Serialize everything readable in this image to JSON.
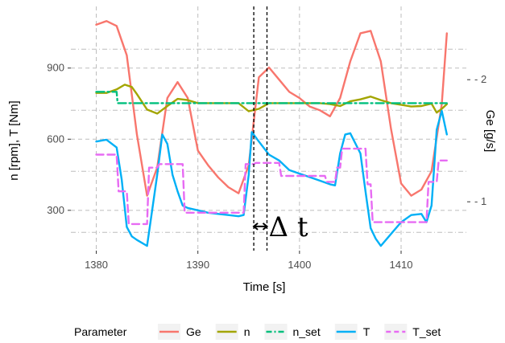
{
  "chart_data": {
    "type": "line",
    "xlabel": "Time [s]",
    "ylabel": "n [rpm], T [Nm]",
    "y2label": "Ge [g/s]",
    "xlim": [
      1377.5,
      1416.5
    ],
    "ylim": [
      130,
      1160
    ],
    "y2lim": [
      0.6,
      2.6
    ],
    "xticks": [
      1380,
      1390,
      1400,
      1410
    ],
    "yticks": [
      300,
      600,
      900
    ],
    "y2ticks": [
      1,
      2
    ],
    "minor_y_gridlines": [
      150,
      450,
      750,
      1050
    ],
    "minor_y2_gridlines": [
      0.75,
      1.25,
      1.75,
      2.25
    ],
    "grid": true,
    "legend": {
      "position": "bottom",
      "title": "Parameter",
      "entries": [
        {
          "name": "Ge",
          "color": "#F8766D",
          "dash": "solid"
        },
        {
          "name": "n",
          "color": "#A3A500",
          "dash": "solid"
        },
        {
          "name": "n_set",
          "color": "#00BF7D",
          "dash": "dashdot"
        },
        {
          "name": "T",
          "color": "#00B0F6",
          "dash": "solid"
        },
        {
          "name": "T_set",
          "color": "#E76BF3",
          "dash": "dashed"
        }
      ]
    },
    "annotation": {
      "text": "Δ t",
      "x_start": 1395.5,
      "x_end": 1396.8,
      "y": 232
    },
    "series": [
      {
        "name": "Ge",
        "axis": "y2",
        "color": "#F8766D",
        "x": [
          1380,
          1381,
          1382,
          1383,
          1384,
          1385,
          1386,
          1387,
          1388,
          1389,
          1390,
          1391,
          1392,
          1393,
          1394,
          1395,
          1396,
          1397,
          1398,
          1399,
          1400,
          1401,
          1402,
          1403,
          1404,
          1405,
          1406,
          1407,
          1408,
          1409,
          1410,
          1411,
          1412,
          1413,
          1414,
          1414.5
        ],
        "y": [
          2.45,
          2.48,
          2.44,
          2.2,
          1.55,
          1.05,
          1.28,
          1.85,
          1.98,
          1.85,
          1.42,
          1.3,
          1.2,
          1.12,
          1.07,
          1.3,
          2.02,
          2.1,
          2.0,
          1.9,
          1.85,
          1.78,
          1.75,
          1.7,
          1.85,
          2.15,
          2.38,
          2.4,
          2.15,
          1.6,
          1.15,
          1.05,
          1.1,
          1.25,
          1.8,
          2.38
        ]
      },
      {
        "name": "n",
        "color": "#A3A500",
        "x": [
          1380,
          1381,
          1382,
          1382.8,
          1383.5,
          1384,
          1385,
          1386,
          1387,
          1388,
          1389,
          1390,
          1391,
          1392,
          1393,
          1394,
          1395,
          1396,
          1397,
          1398,
          1400,
          1402,
          1403,
          1404,
          1405,
          1406,
          1407,
          1408,
          1409,
          1410,
          1411,
          1412,
          1413,
          1413.5,
          1414,
          1414.5
        ],
        "y": [
          795,
          795,
          810,
          830,
          820,
          790,
          725,
          708,
          740,
          770,
          765,
          752,
          752,
          752,
          752,
          752,
          718,
          728,
          752,
          752,
          752,
          752,
          748,
          740,
          760,
          768,
          780,
          765,
          752,
          745,
          738,
          740,
          750,
          712,
          728,
          748
        ]
      },
      {
        "name": "n_set",
        "color": "#00BF7D",
        "x": [
          1380,
          1382,
          1382.1,
          1385,
          1386,
          1390,
          1395,
          1400,
          1405,
          1410,
          1414.5
        ],
        "y": [
          800,
          800,
          752,
          752,
          752,
          752,
          752,
          752,
          752,
          752,
          752
        ]
      },
      {
        "name": "T",
        "color": "#00B0F6",
        "x": [
          1380,
          1381,
          1382,
          1382.5,
          1383,
          1383.5,
          1384,
          1385,
          1386,
          1386.5,
          1387,
          1387.5,
          1388,
          1388.5,
          1389,
          1390,
          1391,
          1392,
          1393,
          1394,
          1394.5,
          1395,
          1395.3,
          1396,
          1397,
          1398,
          1399,
          1400,
          1401,
          1402,
          1403,
          1403.5,
          1404,
          1404.5,
          1405,
          1406,
          1406.5,
          1407,
          1407.5,
          1408,
          1409,
          1410,
          1411,
          1412,
          1412.5,
          1413,
          1413.5,
          1414,
          1414.5
        ],
        "y": [
          590,
          598,
          565,
          430,
          230,
          190,
          175,
          150,
          450,
          620,
          580,
          450,
          380,
          320,
          310,
          300,
          290,
          285,
          280,
          275,
          280,
          450,
          630,
          590,
          535,
          510,
          470,
          455,
          440,
          425,
          410,
          405,
          540,
          620,
          625,
          540,
          380,
          225,
          180,
          150,
          200,
          250,
          280,
          285,
          250,
          320,
          640,
          720,
          620
        ]
      },
      {
        "name": "T_set",
        "color": "#E76BF3",
        "x": [
          1380,
          1382,
          1382.2,
          1383,
          1383.2,
          1385,
          1385.2,
          1386,
          1386.2,
          1388.5,
          1388.7,
          1394.5,
          1394.7,
          1395.5,
          1395.7,
          1398,
          1398.2,
          1402.5,
          1402.7,
          1403.5,
          1403.7,
          1404,
          1404.2,
          1406.5,
          1406.7,
          1407,
          1407.2,
          1412.5,
          1412.7,
          1413.5,
          1413.7,
          1414.5
        ],
        "y": [
          535,
          535,
          380,
          380,
          242,
          242,
          480,
          480,
          495,
          495,
          290,
          290,
          495,
          495,
          500,
          500,
          445,
          445,
          420,
          420,
          480,
          480,
          560,
          560,
          410,
          410,
          250,
          250,
          420,
          420,
          510,
          510
        ]
      }
    ]
  }
}
